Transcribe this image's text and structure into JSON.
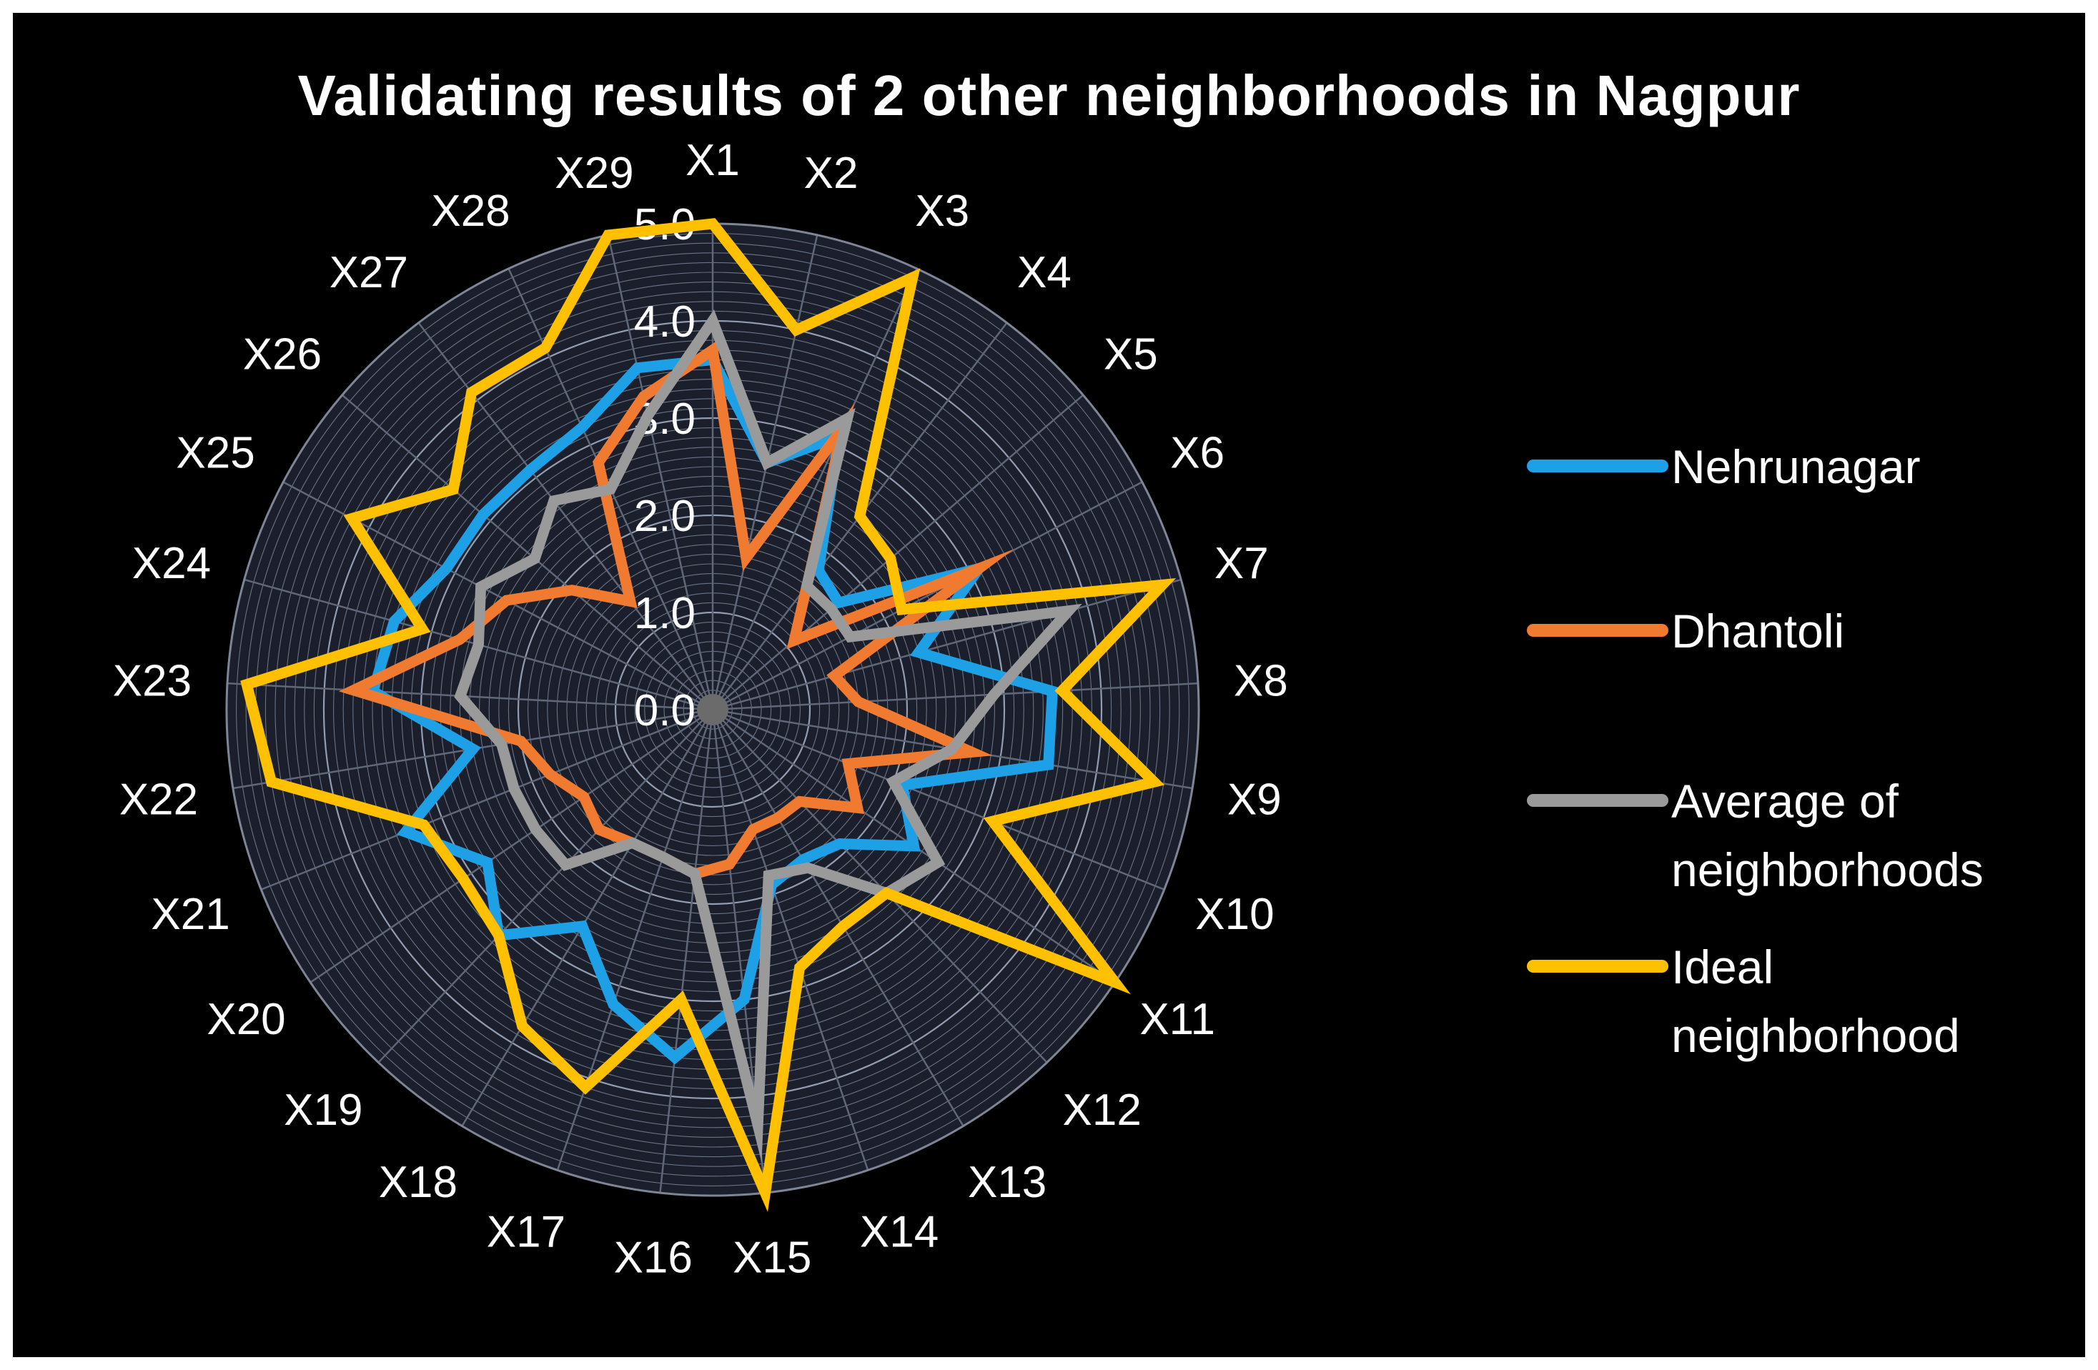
{
  "chart_data": {
    "type": "radar",
    "title": "Validating results of 2 other neighborhoods in Nagpur",
    "categories": [
      "X1",
      "X2",
      "X3",
      "X4",
      "X5",
      "X6",
      "X7",
      "X8",
      "X9",
      "X10",
      "X11",
      "X12",
      "X13",
      "X14",
      "X15",
      "X16",
      "X17",
      "X18",
      "X19",
      "X20",
      "X21",
      "X22",
      "X23",
      "X24",
      "X25",
      "X26",
      "X27",
      "X28",
      "X29"
    ],
    "rlim": [
      0,
      5
    ],
    "r_ticks": [
      "0.0",
      "1.0",
      "2.0",
      "3.0",
      "4.0",
      "5.0"
    ],
    "grid": true,
    "legend_position": "right",
    "series": [
      {
        "name": "Nehrunagar",
        "color": "#1ea0e6",
        "values": [
          3.6,
          2.6,
          3.1,
          1.8,
          1.7,
          3.1,
          2.2,
          3.5,
          3.5,
          2.1,
          2.5,
          1.9,
          1.8,
          1.9,
          3.0,
          3.6,
          3.2,
          2.6,
          3.2,
          2.8,
          3.4,
          2.5,
          3.5,
          3.4,
          3.1,
          3.1,
          3.1,
          3.2,
          3.6
        ]
      },
      {
        "name": "Dhantoli",
        "color": "#f07a30",
        "values": [
          3.7,
          1.6,
          3.2,
          1.6,
          1.1,
          3.1,
          1.3,
          1.5,
          2.7,
          1.5,
          1.8,
          1.3,
          1.3,
          1.3,
          1.6,
          1.7,
          1.6,
          1.6,
          1.7,
          1.6,
          1.8,
          2.0,
          3.7,
          2.7,
          2.4,
          1.9,
          1.4,
          2.8,
          3.3
        ]
      },
      {
        "name": "Average of neighborhoods",
        "color": "#9a9a9a",
        "values": [
          4.0,
          2.6,
          3.3,
          1.6,
          1.6,
          1.6,
          3.8,
          2.9,
          2.5,
          2.0,
          2.8,
          2.6,
          1.9,
          1.8,
          4.3,
          1.7,
          1.6,
          1.6,
          2.2,
          2.2,
          2.2,
          2.2,
          2.6,
          2.5,
          2.7,
          2.4,
          2.7,
          2.5,
          3.1
        ]
      },
      {
        "name": "Ideal neighborhood",
        "color": "#ffc000",
        "values": [
          5.0,
          4.0,
          4.9,
          2.5,
          2.4,
          2.2,
          4.8,
          3.6,
          4.6,
          3.1,
          5.0,
          2.6,
          2.6,
          2.8,
          5.0,
          3.0,
          4.1,
          3.8,
          3.2,
          3.1,
          3.2,
          4.6,
          4.8,
          3.1,
          4.2,
          3.5,
          4.1,
          4.1,
          5.0
        ]
      }
    ]
  },
  "legend": {
    "items": [
      {
        "lines": [
          "Nehrunagar"
        ],
        "color": "#1ea0e6"
      },
      {
        "lines": [
          "Dhantoli"
        ],
        "color": "#f07a30"
      },
      {
        "lines": [
          "Average of",
          "neighborhoods"
        ],
        "color": "#9a9a9a"
      },
      {
        "lines": [
          "Ideal",
          "neighborhood"
        ],
        "color": "#ffc000"
      }
    ]
  }
}
